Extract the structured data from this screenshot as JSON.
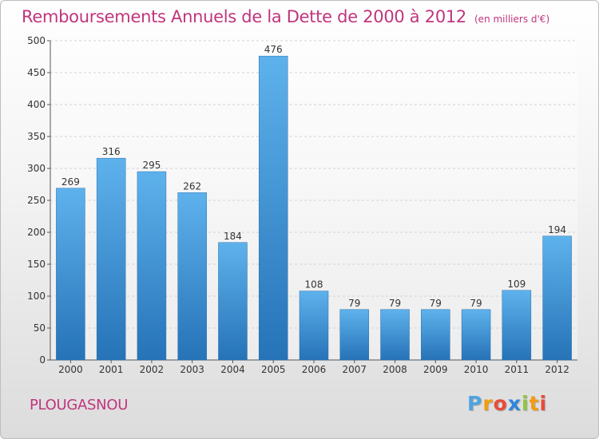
{
  "title": "Remboursements Annuels de la Dette de 2000 à 2012",
  "unit": "(en milliers d'€)",
  "commune": "PLOUGASNOU",
  "brand": {
    "letters": [
      "P",
      "r",
      "o",
      "x",
      "i",
      "t",
      "i"
    ],
    "colors": [
      "#4fa3e0",
      "#f39c12",
      "#e74c3c",
      "#2e86de",
      "#8cc63f",
      "#f39c12",
      "#e74c3c"
    ]
  },
  "chart_data": {
    "type": "bar",
    "categories": [
      "2000",
      "2001",
      "2002",
      "2003",
      "2004",
      "2005",
      "2006",
      "2007",
      "2008",
      "2009",
      "2010",
      "2011",
      "2012"
    ],
    "values": [
      269,
      316,
      295,
      262,
      184,
      476,
      108,
      79,
      79,
      79,
      79,
      109,
      194
    ],
    "title": "Remboursements Annuels de la Dette de 2000 à 2012",
    "ylim": [
      0,
      500
    ],
    "yticks": [
      0,
      50,
      100,
      150,
      200,
      250,
      300,
      350,
      400,
      450,
      500
    ],
    "grid": true,
    "bar_color_top": "#5eb2ec",
    "bar_color_bottom": "#2673b8"
  }
}
